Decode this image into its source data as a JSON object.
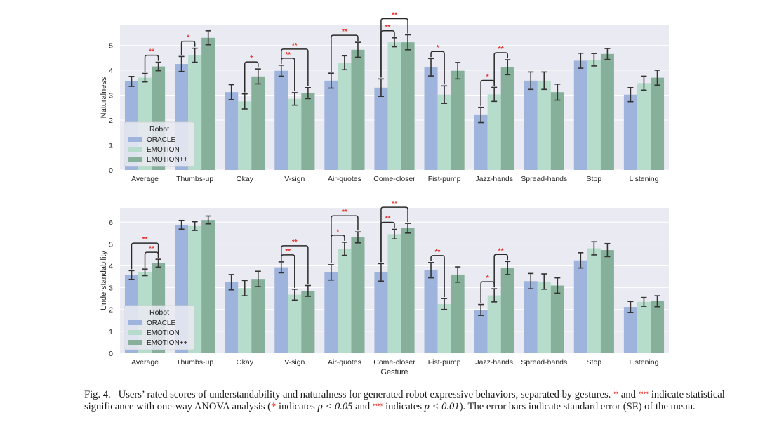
{
  "colors": {
    "panel_bg": "#eaeaf2",
    "grid": "#ffffff",
    "oracle": "#9fb4dc",
    "emotion": "#b6dccb",
    "emotion_pp": "#86b09a",
    "error_bar": "#333333",
    "sig": "#e8302a",
    "bracket": "#2a2a2a"
  },
  "chart_data": [
    {
      "type": "bar",
      "ylabel": "Naturalness",
      "xlabel": "",
      "ylim": [
        0,
        5.8
      ],
      "yticks": [
        "0",
        "1",
        "2",
        "3",
        "4",
        "5"
      ],
      "grid": true,
      "categories": [
        "Average",
        "Thumbs-up",
        "Okay",
        "V-sign",
        "Air-quotes",
        "Come-closer",
        "Fist-pump",
        "Jazz-hands",
        "Spread-hands",
        "Stop",
        "Listening"
      ],
      "series": [
        {
          "name": "ORACLE",
          "values": [
            3.55,
            4.25,
            3.12,
            3.98,
            3.58,
            3.3,
            4.12,
            2.2,
            3.58,
            4.38,
            3.02
          ],
          "errors": [
            0.2,
            0.3,
            0.3,
            0.22,
            0.3,
            0.35,
            0.35,
            0.3,
            0.35,
            0.3,
            0.28
          ]
        },
        {
          "name": "EMOTION",
          "values": [
            3.7,
            4.6,
            2.75,
            2.85,
            4.3,
            5.12,
            3.02,
            3.03,
            3.58,
            4.42,
            3.48
          ]
        },
        {
          "name": "EMOTION++",
          "values": [
            4.15,
            5.3,
            3.75,
            3.08,
            4.82,
            5.12,
            3.98,
            4.12,
            3.12,
            4.65,
            3.7
          ]
        }
      ],
      "errors": [
        [
          0.2,
          0.3,
          0.3,
          0.22,
          0.3,
          0.35,
          0.35,
          0.3,
          0.35,
          0.3,
          0.28
        ],
        [
          0.17,
          0.28,
          0.3,
          0.25,
          0.28,
          0.18,
          0.35,
          0.28,
          0.35,
          0.25,
          0.28
        ],
        [
          0.17,
          0.28,
          0.3,
          0.22,
          0.3,
          0.3,
          0.33,
          0.3,
          0.32,
          0.22,
          0.3
        ]
      ],
      "legend": {
        "title": "Robot",
        "placement": "bottom-left",
        "entries": [
          "ORACLE",
          "EMOTION",
          "EMOTION++"
        ]
      },
      "significance": [
        {
          "category": 0,
          "from": 1,
          "to": 2,
          "label": "**",
          "level": 0
        },
        {
          "category": 1,
          "from": 0,
          "to": 1,
          "label": "*",
          "level": 0
        },
        {
          "category": 2,
          "from": 1,
          "to": 2,
          "label": "*",
          "level": 0
        },
        {
          "category": 3,
          "from": 0,
          "to": 1,
          "label": "**",
          "level": 0
        },
        {
          "category": 3,
          "from": 0,
          "to": 2,
          "label": "**",
          "level": 1
        },
        {
          "category": 4,
          "from": 0,
          "to": 2,
          "label": "**",
          "level": 0
        },
        {
          "category": 5,
          "from": 0,
          "to": 1,
          "label": "**",
          "level": 0
        },
        {
          "category": 5,
          "from": 0,
          "to": 2,
          "label": "**",
          "level": 1
        },
        {
          "category": 6,
          "from": 0,
          "to": 1,
          "label": "*",
          "level": 0
        },
        {
          "category": 7,
          "from": 0,
          "to": 1,
          "label": "*",
          "level": 0
        },
        {
          "category": 7,
          "from": 1,
          "to": 2,
          "label": "**",
          "level": 0
        }
      ]
    },
    {
      "type": "bar",
      "ylabel": "Understandability",
      "xlabel": "Gesture",
      "ylim": [
        0,
        6.65
      ],
      "yticks": [
        "0",
        "1",
        "2",
        "3",
        "4",
        "5",
        "6"
      ],
      "grid": true,
      "categories": [
        "Average",
        "Thumbs-up",
        "Okay",
        "V-sign",
        "Air-quotes",
        "Come-closer",
        "Fist-pump",
        "Jazz-hands",
        "Spread-hands",
        "Stop",
        "Listening"
      ],
      "series": [
        {
          "name": "ORACLE",
          "values": [
            3.58,
            5.88,
            3.25,
            3.93,
            3.7,
            3.7,
            3.8,
            1.98,
            3.3,
            4.25,
            2.12
          ]
        },
        {
          "name": "EMOTION",
          "values": [
            3.7,
            5.82,
            2.98,
            2.68,
            4.78,
            5.45,
            2.25,
            2.65,
            3.28,
            4.8,
            2.35
          ]
        },
        {
          "name": "EMOTION++",
          "values": [
            4.12,
            6.1,
            3.4,
            2.85,
            5.3,
            5.72,
            3.6,
            3.9,
            3.1,
            4.72,
            2.38
          ]
        }
      ],
      "errors": [
        [
          0.2,
          0.2,
          0.35,
          0.25,
          0.35,
          0.4,
          0.35,
          0.25,
          0.35,
          0.35,
          0.25
        ],
        [
          0.15,
          0.2,
          0.35,
          0.25,
          0.3,
          0.22,
          0.25,
          0.3,
          0.35,
          0.3,
          0.2
        ],
        [
          0.18,
          0.18,
          0.35,
          0.25,
          0.25,
          0.22,
          0.35,
          0.3,
          0.35,
          0.3,
          0.25
        ]
      ],
      "legend": {
        "title": "Robot",
        "placement": "bottom-left",
        "entries": [
          "ORACLE",
          "EMOTION",
          "EMOTION++"
        ]
      },
      "significance": [
        {
          "category": 0,
          "from": 1,
          "to": 2,
          "label": "**",
          "level": 0
        },
        {
          "category": 0,
          "from": 0,
          "to": 2,
          "label": "**",
          "level": 1
        },
        {
          "category": 3,
          "from": 0,
          "to": 1,
          "label": "**",
          "level": 0
        },
        {
          "category": 3,
          "from": 0,
          "to": 2,
          "label": "**",
          "level": 1
        },
        {
          "category": 4,
          "from": 0,
          "to": 1,
          "label": "*",
          "level": 0
        },
        {
          "category": 4,
          "from": 0,
          "to": 2,
          "label": "**",
          "level": 1
        },
        {
          "category": 5,
          "from": 0,
          "to": 1,
          "label": "**",
          "level": 0
        },
        {
          "category": 5,
          "from": 0,
          "to": 2,
          "label": "**",
          "level": 1
        },
        {
          "category": 6,
          "from": 0,
          "to": 1,
          "label": "**",
          "level": 0
        },
        {
          "category": 7,
          "from": 0,
          "to": 1,
          "label": "*",
          "level": 0
        },
        {
          "category": 7,
          "from": 1,
          "to": 2,
          "label": "**",
          "level": 0
        }
      ]
    }
  ],
  "caption": {
    "fig_label": "Fig. 4.",
    "text_1": "Users’ rated scores of understandability and naturalness for generated robot expressive behaviors, separated by gestures.",
    "star_1": "*",
    "and_1": "and",
    "star_2": "**",
    "text_2": "indicate statistical significance with one-way ANOVA analysis (",
    "star_3": "*",
    "text_3": "indicates",
    "math_1": "p < 0.05",
    "and_2": "and",
    "star_4": "**",
    "text_4": "indicates",
    "math_2": "p < 0.01",
    "text_5": "). The error bars indicate standard error (SE) of the mean."
  }
}
